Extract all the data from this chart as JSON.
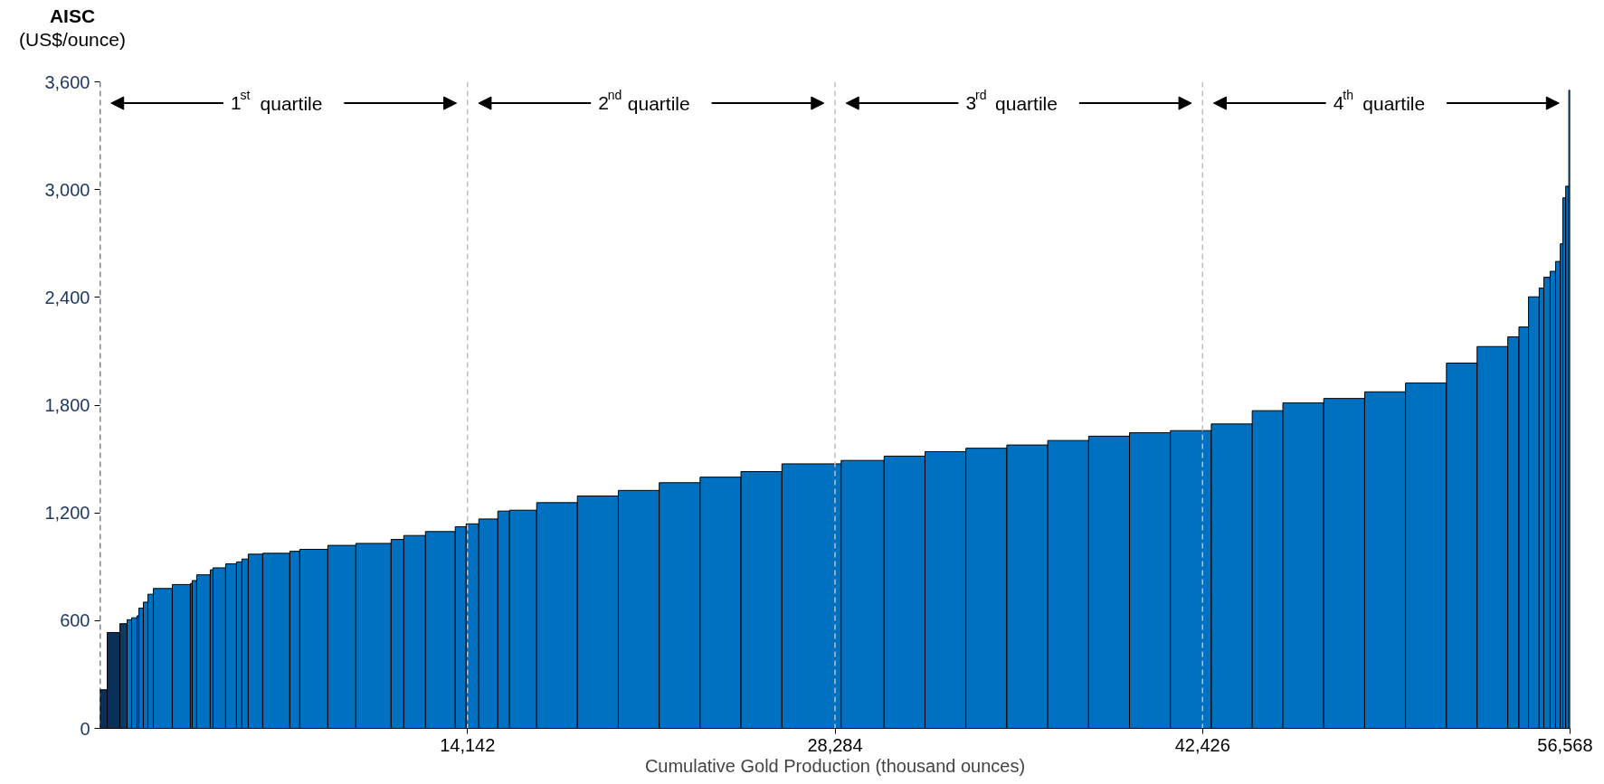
{
  "chart_data": {
    "type": "histogram",
    "ylabel": "AISC\n(US$/ounce)",
    "xlabel": "Cumulative Gold Production (thousand ounces)",
    "bins": [
      0,
      278,
      765,
      1044,
      1218,
      1426,
      1496,
      1670,
      1844,
      2053,
      2783,
      3479,
      3549,
      3722,
      4244,
      4349,
      4836,
      5253,
      5462,
      5706,
      6262,
      7306,
      7689,
      8767,
      9846,
      11202,
      11689,
      12524,
      13672,
      14090,
      14577,
      15308,
      15760,
      16804,
      18371,
      19945,
      21520,
      23092,
      24666,
      26240,
      28521,
      30174,
      31747,
      33321,
      34895,
      36468,
      38042,
      39616,
      41189,
      42763,
      44337,
      45517,
      47090,
      48664,
      50237,
      51811,
      52991,
      54172,
      54600,
      54968,
      55380,
      55560,
      55800,
      56010,
      56190,
      56290,
      56400,
      56520,
      56568
    ],
    "values": [
      215,
      534,
      583,
      605,
      616,
      627,
      670,
      703,
      747,
      779,
      801,
      807,
      823,
      855,
      883,
      894,
      916,
      927,
      943,
      970,
      975,
      986,
      997,
      1019,
      1030,
      1052,
      1074,
      1096,
      1123,
      1139,
      1166,
      1210,
      1215,
      1257,
      1294,
      1325,
      1368,
      1399,
      1430,
      1473,
      1492,
      1516,
      1541,
      1560,
      1578,
      1603,
      1627,
      1646,
      1658,
      1695,
      1769,
      1812,
      1837,
      1874,
      1923,
      2034,
      2126,
      2180,
      2235,
      2403,
      2452,
      2512,
      2545,
      2600,
      2698,
      2954,
      3019,
      3553
    ],
    "colors": [
      "#08305a",
      "#08305a",
      "#0b3a66",
      "#0070c0",
      "#0070c0",
      "#0070c0",
      "#0070c0",
      "#0070c0",
      "#0070c0",
      "#0070c0",
      "#0070c0",
      "#0070c0",
      "#0070c0",
      "#0070c0",
      "#0070c0",
      "#0070c0",
      "#0070c0",
      "#0070c0",
      "#0070c0",
      "#0070c0",
      "#0070c0",
      "#0070c0",
      "#0070c0",
      "#0070c0",
      "#0070c0",
      "#0070c0",
      "#0070c0",
      "#0070c0",
      "#0070c0",
      "#0070c0",
      "#0070c0",
      "#0070c0",
      "#0070c0",
      "#0070c0",
      "#0070c0",
      "#0070c0",
      "#0070c0",
      "#0070c0",
      "#0070c0",
      "#0070c0",
      "#0070c0",
      "#0070c0",
      "#0070c0",
      "#0070c0",
      "#0070c0",
      "#0070c0",
      "#0070c0",
      "#0070c0",
      "#0070c0",
      "#0070c0",
      "#0070c0",
      "#0070c0",
      "#0070c0",
      "#0070c0",
      "#0070c0",
      "#0070c0",
      "#0070c0",
      "#0070c0",
      "#0070c0",
      "#0070c0",
      "#0070c0",
      "#0070c0",
      "#0070c0",
      "#0070c0",
      "#0070c0",
      "#0070c0",
      "#0070c0",
      "#0070c0"
    ],
    "xlim": [
      0,
      56568
    ],
    "ylim": [
      0,
      3600
    ],
    "xticks": [
      {
        "value": 14142,
        "label": "14,142"
      },
      {
        "value": 28284,
        "label": "28,284"
      },
      {
        "value": 42426,
        "label": "42,426"
      },
      {
        "value": 56568,
        "label": "56,568"
      }
    ],
    "yticks": [
      {
        "value": 0,
        "label": "0"
      },
      {
        "value": 600,
        "label": "600"
      },
      {
        "value": 1200,
        "label": "1,200"
      },
      {
        "value": 1800,
        "label": "1,800"
      },
      {
        "value": 2400,
        "label": "2,400"
      },
      {
        "value": 3000,
        "label": "3,000"
      },
      {
        "value": 3600,
        "label": "3,600"
      }
    ],
    "grid": false,
    "ref_lines": [
      {
        "axis": "x",
        "value": 0,
        "label": null,
        "color": "#000000",
        "line_style": "dashed"
      },
      {
        "axis": "x",
        "value": 14142,
        "label": null,
        "color": "#bfbfbf",
        "line_style": "dashed"
      },
      {
        "axis": "x",
        "value": 28284,
        "label": null,
        "color": "#bfbfbf",
        "line_style": "dashed"
      },
      {
        "axis": "x",
        "value": 42426,
        "label": null,
        "color": "#bfbfbf",
        "line_style": "dashed"
      }
    ],
    "annotations": [
      "1$^{st}$ quartile",
      "2$^{nd}$ quartile",
      "3$^{rd}$ quartile",
      "4$^{th}$ quartile"
    ]
  }
}
